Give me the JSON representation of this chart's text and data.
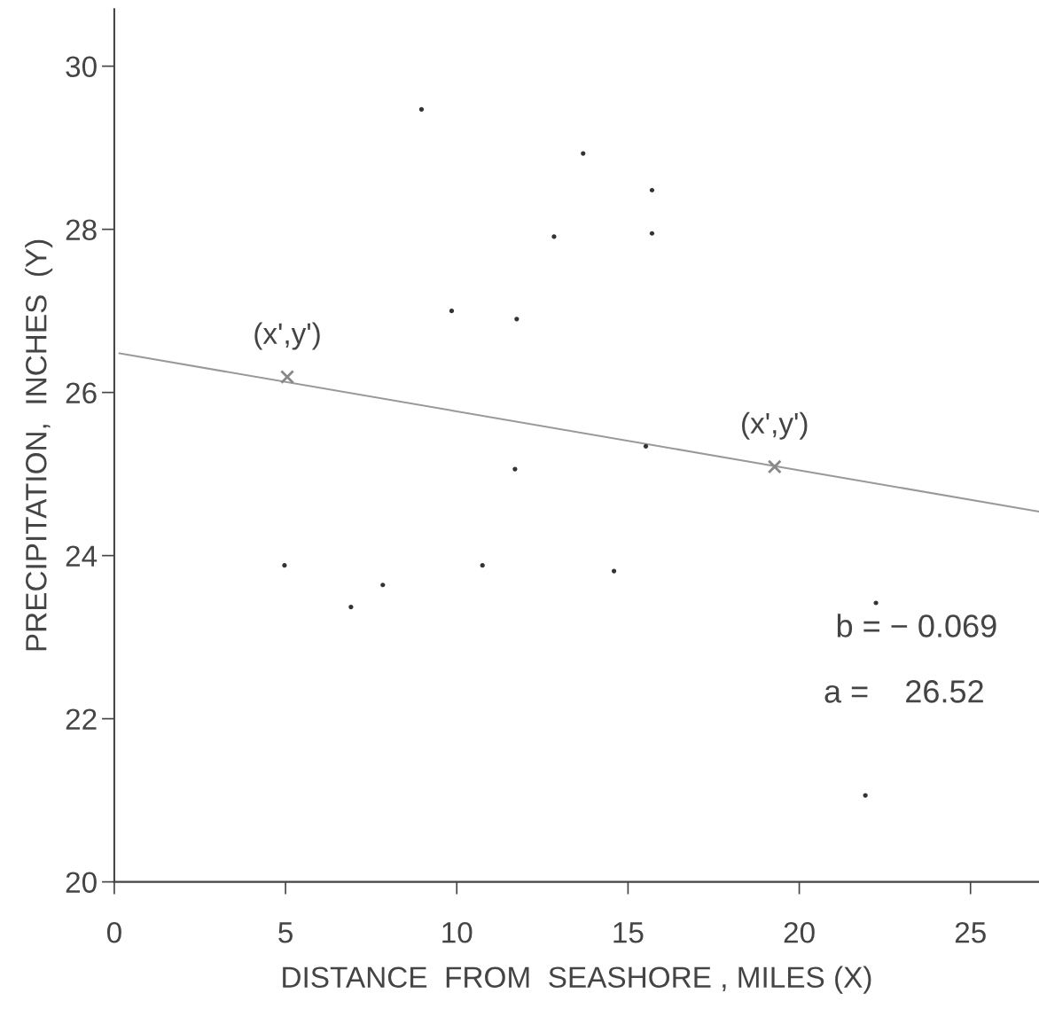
{
  "chart_data": {
    "type": "scatter",
    "xlabel": "DISTANCE  FROM  SEASHORE , MILES (X)",
    "ylabel": "PRECIPITATION,  INCHES  (Y)",
    "xlim": [
      0,
      27.0
    ],
    "ylim": [
      20,
      30.7
    ],
    "xticks": [
      0,
      5,
      10,
      15,
      20,
      25
    ],
    "yticks": [
      20,
      22,
      24,
      26,
      28,
      30
    ],
    "grid": false,
    "series": [
      {
        "color": "#333333",
        "marker": "circle",
        "x": [
          8.97,
          13.69,
          15.7,
          15.7,
          12.84,
          9.85,
          11.75,
          11.7,
          15.52,
          4.97,
          6.91,
          7.84,
          10.75,
          14.59,
          22.24,
          21.93
        ],
        "values": [
          29.47,
          28.93,
          28.48,
          27.95,
          27.91,
          27.0,
          26.9,
          25.06,
          25.34,
          23.88,
          23.37,
          23.64,
          23.88,
          23.81,
          23.42,
          21.06
        ]
      },
      {
        "type": "line",
        "color": "#999999",
        "marker": "none",
        "line_style": "solid",
        "x": [
          0.15,
          27.0
        ],
        "values": [
          26.48,
          24.54
        ]
      },
      {
        "color": "#888888",
        "marker": "cross",
        "x": [
          5.05,
          19.28
        ],
        "values": [
          26.19,
          25.09
        ]
      }
    ],
    "annotations": [
      {
        "text": "(x',y')",
        "x": 5.05,
        "y": 26.19
      },
      {
        "text": "(x',y')",
        "x": 19.28,
        "y": 25.09
      },
      "b = − 0.069",
      "a =    26.52"
    ]
  }
}
